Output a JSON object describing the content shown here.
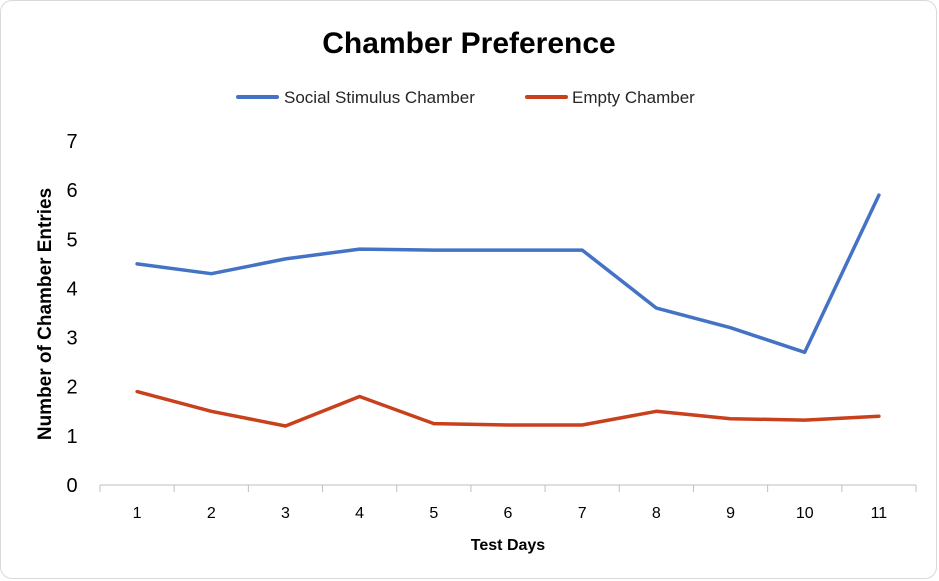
{
  "chart_data": {
    "type": "line",
    "title": "Chamber Preference",
    "xlabel": "Test Days",
    "ylabel": "Number of Chamber Entries",
    "categories": [
      "1",
      "2",
      "3",
      "4",
      "5",
      "6",
      "7",
      "8",
      "9",
      "10",
      "11"
    ],
    "ylim": [
      0,
      7
    ],
    "yticks": [
      "0",
      "1",
      "2",
      "3",
      "4",
      "5",
      "6",
      "7"
    ],
    "grid": false,
    "legend_position": "top",
    "series": [
      {
        "name": "Social Stimulus Chamber",
        "color": "#4472c4",
        "values": [
          4.5,
          4.3,
          4.6,
          4.8,
          4.78,
          4.78,
          4.78,
          3.6,
          3.2,
          2.7,
          5.9
        ]
      },
      {
        "name": "Empty Chamber",
        "color": "#c9401c",
        "values": [
          1.9,
          1.5,
          1.2,
          1.8,
          1.25,
          1.22,
          1.22,
          1.5,
          1.35,
          1.32,
          1.4
        ]
      }
    ]
  }
}
